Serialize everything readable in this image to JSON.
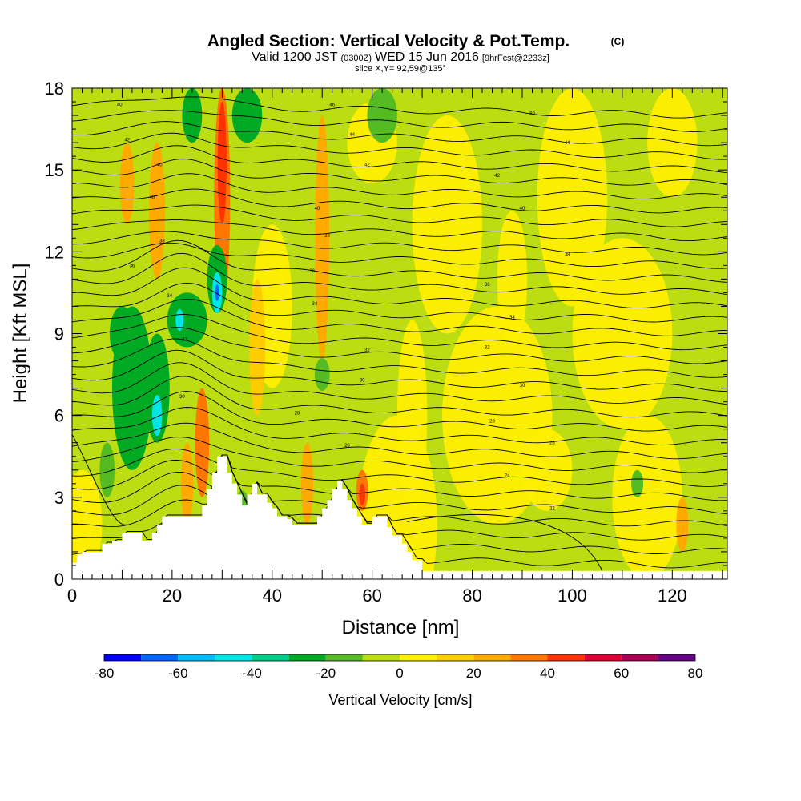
{
  "chart_data": {
    "type": "heatmap",
    "title": "Angled Section: Vertical Velocity & Pot.Temp.",
    "title_unit": "(C)",
    "subtitle_line1_a": "Valid 1200 JST",
    "subtitle_line1_b": "(0300Z)",
    "subtitle_line1_c": "WED 15 Jun 2016",
    "subtitle_line1_d": "[9hrFcst@2233z]",
    "subtitle_line2": "slice X,Y= 92,59@135°",
    "xlabel": "Distance [nm]",
    "ylabel": "Height [Kft MSL]",
    "xlim": [
      0,
      131
    ],
    "ylim": [
      0,
      18
    ],
    "x_ticks": [
      0,
      20,
      40,
      60,
      80,
      100,
      120
    ],
    "y_ticks": [
      0,
      3,
      6,
      9,
      12,
      15,
      18
    ],
    "colorbar": {
      "label": "Vertical Velocity [cm/s]",
      "tick_values": [
        -80,
        -60,
        -40,
        -20,
        0,
        20,
        40,
        60,
        80
      ],
      "bounds": [
        -80,
        -70,
        -60,
        -50,
        -40,
        -30,
        -20,
        -10,
        0,
        10,
        20,
        30,
        40,
        50,
        60,
        70,
        80
      ],
      "colors": [
        "#0000ff",
        "#0066ff",
        "#00bbff",
        "#00e6e6",
        "#00cc88",
        "#00aa22",
        "#55bb22",
        "#bbdd11",
        "#ffee00",
        "#ffcc00",
        "#ffaa00",
        "#ff7700",
        "#ff3300",
        "#dd0033",
        "#aa0055",
        "#660088"
      ]
    },
    "terrain": {
      "x": [
        0,
        1,
        2,
        4,
        6,
        8,
        10,
        11,
        13,
        14,
        15,
        16,
        17,
        18,
        19,
        20,
        21,
        22,
        23,
        24,
        25,
        26,
        27,
        28,
        29,
        30,
        31,
        32,
        33,
        34,
        35,
        36,
        37,
        38,
        39,
        40,
        41,
        42,
        43,
        44,
        45,
        46,
        47,
        48,
        49,
        50,
        51,
        52,
        53,
        54,
        55,
        56,
        57,
        58,
        59,
        60,
        61,
        62,
        63,
        64,
        65,
        66,
        67,
        68,
        70,
        72,
        74,
        76,
        78,
        80,
        131
      ],
      "y": [
        0.6,
        0.9,
        1.0,
        1.0,
        1.3,
        1.4,
        1.7,
        1.7,
        1.7,
        1.4,
        1.4,
        1.7,
        2.0,
        2.3,
        2.3,
        2.3,
        2.3,
        2.3,
        2.3,
        2.3,
        2.3,
        2.7,
        3.3,
        3.9,
        4.5,
        4.5,
        3.9,
        3.5,
        3.1,
        2.7,
        3.1,
        3.5,
        3.1,
        3.1,
        2.8,
        2.6,
        2.3,
        2.3,
        2.2,
        2.0,
        2.0,
        2.0,
        2.0,
        2.0,
        2.3,
        2.6,
        2.9,
        3.3,
        3.6,
        3.3,
        2.9,
        2.6,
        2.3,
        2.0,
        2.0,
        2.3,
        2.3,
        2.3,
        1.9,
        1.6,
        1.6,
        1.3,
        1.0,
        0.7,
        0.3,
        0.3,
        0.3,
        0.3,
        0.3,
        0.3,
        0.3
      ]
    },
    "contour_labels": [
      {
        "x": 9.5,
        "y": 17.4,
        "text": "40"
      },
      {
        "x": 11,
        "y": 16.1,
        "text": "42"
      },
      {
        "x": 17.5,
        "y": 15.2,
        "text": "40"
      },
      {
        "x": 16,
        "y": 14.0,
        "text": "40"
      },
      {
        "x": 18,
        "y": 12.4,
        "text": "38"
      },
      {
        "x": 12,
        "y": 11.5,
        "text": "36"
      },
      {
        "x": 19.5,
        "y": 10.4,
        "text": "34"
      },
      {
        "x": 22.5,
        "y": 8.8,
        "text": "32"
      },
      {
        "x": 22,
        "y": 6.7,
        "text": "30"
      },
      {
        "x": 52,
        "y": 17.4,
        "text": "46"
      },
      {
        "x": 56,
        "y": 16.3,
        "text": "44"
      },
      {
        "x": 59,
        "y": 15.2,
        "text": "42"
      },
      {
        "x": 49,
        "y": 13.6,
        "text": "40"
      },
      {
        "x": 51,
        "y": 12.6,
        "text": "38"
      },
      {
        "x": 48,
        "y": 11.3,
        "text": "36"
      },
      {
        "x": 48.5,
        "y": 10.1,
        "text": "34"
      },
      {
        "x": 59,
        "y": 8.4,
        "text": "32"
      },
      {
        "x": 58,
        "y": 7.3,
        "text": "30"
      },
      {
        "x": 45,
        "y": 6.1,
        "text": "28"
      },
      {
        "x": 55,
        "y": 4.9,
        "text": "26"
      },
      {
        "x": 92,
        "y": 17.1,
        "text": "46"
      },
      {
        "x": 99,
        "y": 16.0,
        "text": "44"
      },
      {
        "x": 85,
        "y": 14.8,
        "text": "42"
      },
      {
        "x": 90,
        "y": 13.6,
        "text": "40"
      },
      {
        "x": 99,
        "y": 11.9,
        "text": "38"
      },
      {
        "x": 83,
        "y": 10.8,
        "text": "36"
      },
      {
        "x": 88,
        "y": 9.6,
        "text": "34"
      },
      {
        "x": 83,
        "y": 8.5,
        "text": "32"
      },
      {
        "x": 90,
        "y": 7.1,
        "text": "30"
      },
      {
        "x": 84,
        "y": 5.8,
        "text": "28"
      },
      {
        "x": 96,
        "y": 5.0,
        "text": "26"
      },
      {
        "x": 87,
        "y": 3.8,
        "text": "24"
      },
      {
        "x": 96,
        "y": 2.6,
        "text": "22"
      }
    ]
  }
}
